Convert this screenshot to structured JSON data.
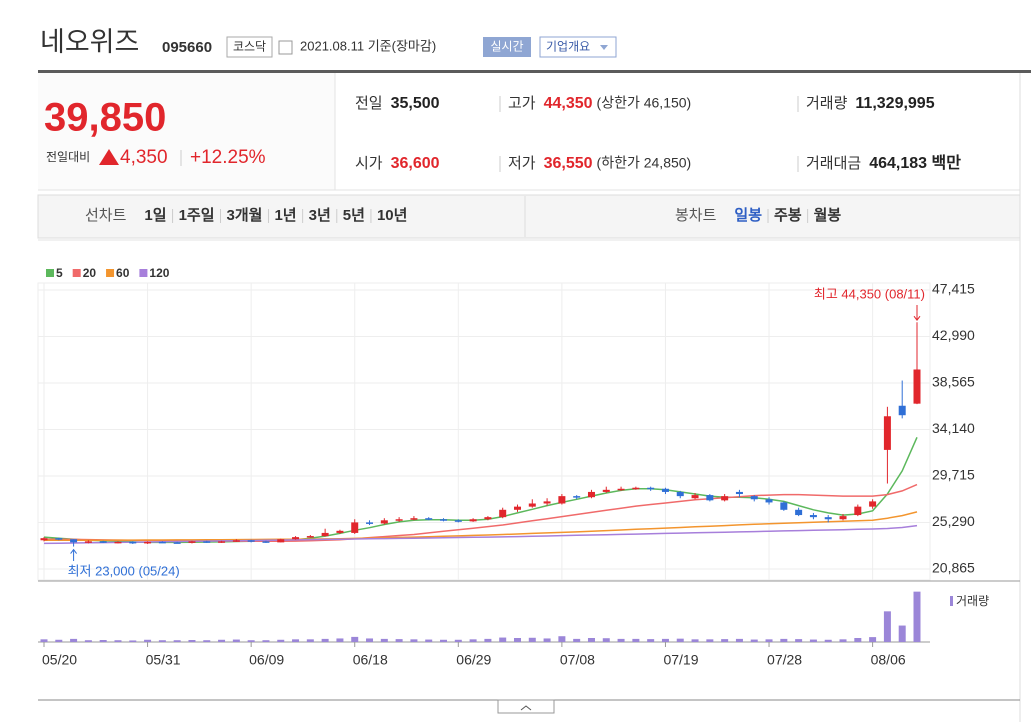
{
  "header": {
    "name": "네오위즈",
    "code": "095660",
    "market": "코스닥",
    "date": "2021.08.11 기준(장마감)",
    "realtime": "실시간",
    "overview": "기업개요"
  },
  "quote": {
    "price": "39,850",
    "change_label": "전일대비",
    "change": "4,350",
    "change_rate": "+12.25%",
    "items": [
      {
        "label": "전일",
        "value": "35,500"
      },
      {
        "label": "고가",
        "value": "44,350",
        "note": "(상한가 46,150)"
      },
      {
        "label": "거래량",
        "value": "11,329,995"
      },
      {
        "label": "시가",
        "value": "36,600"
      },
      {
        "label": "저가",
        "value": "36,550",
        "note": "(하한가 24,850)"
      },
      {
        "label": "거래대금",
        "value": "464,183 백만"
      }
    ]
  },
  "tabs": {
    "line_chart": "선차트",
    "line_periods": [
      "1일",
      "1주일",
      "3개월",
      "1년",
      "3년",
      "5년",
      "10년"
    ],
    "candle_chart": "봉차트",
    "candle_periods": [
      "일봉",
      "주봉",
      "월봉"
    ],
    "selected": "일봉"
  },
  "chart_data": {
    "type": "candlestick",
    "up_color": "#e1262c",
    "down_color": "#2f6fd6",
    "categories": [
      "05/20",
      null,
      null,
      null,
      null,
      null,
      null,
      "05/31",
      null,
      null,
      null,
      null,
      null,
      null,
      "06/09",
      null,
      null,
      null,
      null,
      null,
      null,
      "06/18",
      null,
      null,
      null,
      null,
      null,
      null,
      "06/29",
      null,
      null,
      null,
      null,
      null,
      null,
      "07/08",
      null,
      null,
      null,
      null,
      null,
      null,
      "07/19",
      null,
      null,
      null,
      null,
      null,
      null,
      "07/28",
      null,
      null,
      null,
      null,
      null,
      null,
      "08/06",
      null,
      null,
      null
    ],
    "open": [
      23600,
      23800,
      23700,
      23400,
      23500,
      23400,
      23450,
      23300,
      23450,
      23400,
      23350,
      23500,
      23400,
      23500,
      23600,
      23500,
      23400,
      23700,
      23900,
      24000,
      24300,
      24300,
      25300,
      25200,
      25500,
      25600,
      25700,
      25600,
      25500,
      25400,
      25600,
      25800,
      26500,
      26800,
      27100,
      27100,
      27800,
      27700,
      28200,
      28400,
      28500,
      28600,
      28500,
      28200,
      27600,
      27900,
      27400,
      28200,
      27800,
      27500,
      27200,
      26500,
      26000,
      25800,
      25600,
      26000,
      26800,
      32200,
      36400,
      36600
    ],
    "high": [
      23900,
      23850,
      23700,
      23600,
      23550,
      23500,
      23500,
      23500,
      23500,
      23450,
      23550,
      23550,
      23550,
      23700,
      23650,
      23550,
      23750,
      24000,
      24100,
      24700,
      24600,
      25600,
      25500,
      25700,
      25800,
      25900,
      25800,
      25700,
      25600,
      25700,
      25900,
      26700,
      27000,
      27500,
      27600,
      28000,
      27900,
      28400,
      28700,
      28700,
      28700,
      28700,
      28600,
      28300,
      28100,
      28000,
      28000,
      28400,
      27900,
      27700,
      27300,
      26700,
      26200,
      26000,
      26100,
      27000,
      27500,
      36300,
      38800,
      44350
    ],
    "low": [
      23500,
      23600,
      23000,
      23300,
      23350,
      23300,
      23250,
      23250,
      23350,
      23300,
      23300,
      23350,
      23350,
      23450,
      23400,
      23350,
      23400,
      23650,
      23850,
      23950,
      24200,
      24200,
      25050,
      25100,
      25350,
      25500,
      25500,
      25400,
      25300,
      25350,
      25500,
      25700,
      26300,
      26700,
      26900,
      27000,
      27500,
      27600,
      28100,
      28300,
      28400,
      28300,
      28000,
      27600,
      27500,
      27300,
      27300,
      27700,
      27300,
      27000,
      26400,
      25900,
      25600,
      25300,
      25500,
      25900,
      26600,
      29000,
      35200,
      36550
    ],
    "close": [
      23800,
      23700,
      23400,
      23500,
      23400,
      23450,
      23300,
      23450,
      23400,
      23350,
      23500,
      23400,
      23500,
      23600,
      23500,
      23400,
      23700,
      23900,
      24000,
      24300,
      24500,
      25300,
      25200,
      25500,
      25600,
      25700,
      25600,
      25500,
      25400,
      25600,
      25800,
      26500,
      26800,
      27100,
      27300,
      27800,
      27700,
      28200,
      28400,
      28500,
      28600,
      28500,
      28200,
      27800,
      27900,
      27400,
      27800,
      28000,
      27500,
      27200,
      26500,
      26000,
      25800,
      25600,
      25900,
      26800,
      27300,
      35400,
      35500,
      39850
    ],
    "series": [
      {
        "name": "5",
        "color": "#5cb85c",
        "values": [
          23900,
          23800,
          23700,
          23600,
          23550,
          23500,
          23450,
          23400,
          23400,
          23400,
          23420,
          23440,
          23450,
          23480,
          23500,
          23500,
          23550,
          23650,
          23800,
          24000,
          24250,
          24550,
          24800,
          25100,
          25350,
          25500,
          25550,
          25550,
          25500,
          25500,
          25600,
          25850,
          26200,
          26550,
          26900,
          27200,
          27500,
          27800,
          28100,
          28350,
          28500,
          28500,
          28400,
          28200,
          28000,
          27800,
          27700,
          27700,
          27650,
          27500,
          27300,
          26900,
          26500,
          26200,
          26000,
          26100,
          26400,
          28000,
          30200,
          33400
        ]
      },
      {
        "name": "20",
        "color": "#f06a6a",
        "values": [
          23700,
          23690,
          23680,
          23660,
          23640,
          23620,
          23600,
          23590,
          23580,
          23570,
          23560,
          23550,
          23540,
          23520,
          23510,
          23500,
          23500,
          23520,
          23550,
          23600,
          23650,
          23750,
          23850,
          23950,
          24050,
          24150,
          24300,
          24450,
          24600,
          24750,
          24900,
          25050,
          25250,
          25450,
          25650,
          25850,
          26050,
          26250,
          26450,
          26650,
          26850,
          27000,
          27150,
          27300,
          27450,
          27550,
          27650,
          27750,
          27850,
          27900,
          27950,
          27950,
          27900,
          27850,
          27800,
          27800,
          27800,
          27950,
          28300,
          28900
        ]
      },
      {
        "name": "60",
        "color": "#f3952e",
        "values": [
          23600,
          23600,
          23600,
          23610,
          23610,
          23620,
          23620,
          23630,
          23630,
          23640,
          23640,
          23650,
          23650,
          23660,
          23670,
          23680,
          23690,
          23700,
          23710,
          23730,
          23750,
          23780,
          23810,
          23840,
          23870,
          23900,
          23940,
          23980,
          24020,
          24060,
          24100,
          24150,
          24200,
          24250,
          24300,
          24350,
          24400,
          24460,
          24520,
          24580,
          24640,
          24700,
          24760,
          24820,
          24880,
          24940,
          25000,
          25060,
          25120,
          25170,
          25220,
          25270,
          25320,
          25370,
          25410,
          25450,
          25500,
          25700,
          25950,
          26300
        ]
      },
      {
        "name": "120",
        "color": "#a77fdb",
        "values": [
          23300,
          23320,
          23340,
          23360,
          23380,
          23400,
          23420,
          23440,
          23460,
          23480,
          23500,
          23520,
          23540,
          23560,
          23580,
          23600,
          23620,
          23640,
          23660,
          23680,
          23700,
          23720,
          23740,
          23760,
          23780,
          23800,
          23820,
          23840,
          23860,
          23880,
          23900,
          23920,
          23950,
          23980,
          24010,
          24040,
          24070,
          24100,
          24130,
          24160,
          24190,
          24220,
          24250,
          24280,
          24310,
          24340,
          24370,
          24400,
          24430,
          24460,
          24490,
          24520,
          24550,
          24580,
          24610,
          24640,
          24670,
          24720,
          24820,
          25000
        ]
      }
    ],
    "volume_label": "거래량",
    "volume_color": "#9b86d8",
    "volume": [
      600000,
      500000,
      700000,
      400000,
      450000,
      400000,
      350000,
      500000,
      400000,
      400000,
      450000,
      400000,
      500000,
      550000,
      400000,
      400000,
      500000,
      600000,
      600000,
      700000,
      800000,
      1150000,
      800000,
      700000,
      650000,
      600000,
      550000,
      500000,
      500000,
      600000,
      700000,
      1000000,
      900000,
      950000,
      800000,
      1300000,
      700000,
      900000,
      850000,
      700000,
      700000,
      650000,
      700000,
      750000,
      600000,
      600000,
      650000,
      700000,
      550000,
      600000,
      700000,
      650000,
      550000,
      500000,
      600000,
      900000,
      1100000,
      6900000,
      3700000,
      11329995
    ],
    "volume_lim": [
      0,
      11700000
    ],
    "ylim": [
      19820,
      48080
    ],
    "yticks": [
      {
        "value": 20865,
        "label": "20,865"
      },
      {
        "value": 25290,
        "label": "25,290"
      },
      {
        "value": 29715,
        "label": "29,715"
      },
      {
        "value": 34140,
        "label": "34,140"
      },
      {
        "value": 38565,
        "label": "38,565"
      },
      {
        "value": 42990,
        "label": "42,990"
      },
      {
        "value": 47415,
        "label": "47,415"
      }
    ],
    "grid": true,
    "annotations": [
      {
        "text": "최고 44,350 (08/11)",
        "color": "#e1262c"
      },
      {
        "text": "최저 23,000 (05/24)",
        "color": "#2f6fd6"
      }
    ]
  }
}
